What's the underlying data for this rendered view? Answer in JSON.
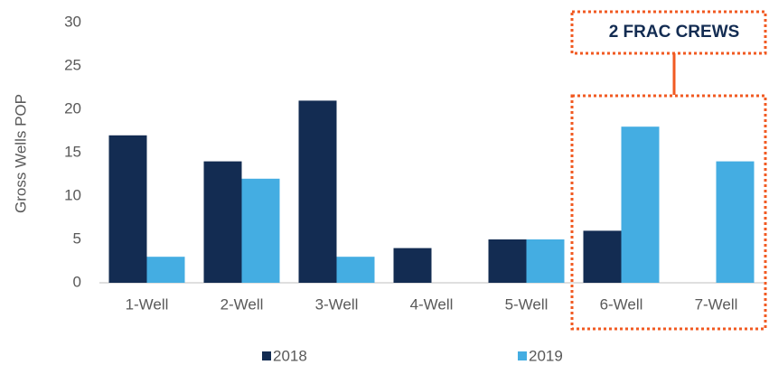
{
  "chart_data": {
    "type": "bar",
    "categories": [
      "1-Well",
      "2-Well",
      "3-Well",
      "4-Well",
      "5-Well",
      "6-Well",
      "7-Well"
    ],
    "series": [
      {
        "name": "2018",
        "color": "#132c52",
        "values": [
          17,
          14,
          21,
          4,
          5,
          6,
          0
        ]
      },
      {
        "name": "2019",
        "color": "#44ade2",
        "values": [
          3,
          12,
          3,
          0,
          5,
          18,
          14
        ]
      }
    ],
    "ylabel": "Gross Wells POP",
    "ylim": [
      0,
      30
    ],
    "yticks": [
      0,
      5,
      10,
      15,
      20,
      25,
      30
    ],
    "grid": false,
    "legend": "bottom",
    "annotation": "2 FRAC CREWS"
  }
}
